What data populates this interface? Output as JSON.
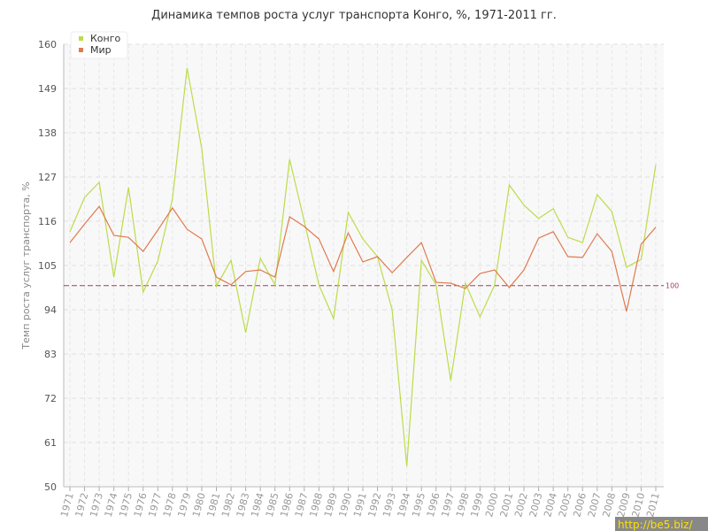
{
  "chart_data": {
    "type": "line",
    "title": "Динамика темпов роста услуг транспорта Конго, %, 1971-2011 гг.",
    "y_label": "Темп роста услуг транспорта, %",
    "categories": [
      "1971",
      "1972",
      "1973",
      "1974",
      "1975",
      "1976",
      "1977",
      "1978",
      "1979",
      "1980",
      "1981",
      "1982",
      "1983",
      "1984",
      "1985",
      "1986",
      "1987",
      "1988",
      "1989",
      "1990",
      "1991",
      "1992",
      "1993",
      "1994",
      "1995",
      "1996",
      "1997",
      "1998",
      "1999",
      "2000",
      "2001",
      "2002",
      "2003",
      "2004",
      "2005",
      "2006",
      "2007",
      "2008",
      "2009",
      "2010",
      "2011"
    ],
    "series": [
      {
        "name": "Конго",
        "color": "#bcdc4a",
        "values": [
          113.4,
          121.9,
          125.7,
          102.1,
          124.4,
          98.4,
          106.1,
          121.5,
          154.1,
          134.1,
          99.9,
          106.3,
          88.3,
          106.8,
          100.2,
          131.4,
          116.0,
          100.2,
          91.8,
          118.2,
          111.6,
          107.2,
          94.0,
          55.1,
          106.3,
          100.2,
          76.4,
          100.6,
          92.2,
          100.2,
          125.0,
          120.0,
          116.7,
          119.1,
          112.0,
          110.7,
          122.6,
          118.4,
          104.6,
          106.5,
          130.1
        ]
      },
      {
        "name": "Мир",
        "color": "#e07a4f",
        "values": [
          110.7,
          115.3,
          119.7,
          112.5,
          112.0,
          108.5,
          113.8,
          119.3,
          114.0,
          111.6,
          102.1,
          100.2,
          103.5,
          103.9,
          102.1,
          117.1,
          114.7,
          111.6,
          103.5,
          113.1,
          105.9,
          107.2,
          103.2,
          107.0,
          110.7,
          100.8,
          100.6,
          99.3,
          103.0,
          103.9,
          99.5,
          103.9,
          111.8,
          113.4,
          107.2,
          107.0,
          112.9,
          108.5,
          93.6,
          110.3,
          114.5
        ]
      }
    ],
    "reference_line": 100,
    "reference_color": "#a0405a",
    "ylim": [
      50,
      160
    ],
    "yticks": [
      50,
      61,
      72,
      83,
      94,
      105,
      116,
      127,
      138,
      149,
      160
    ],
    "grid": true,
    "legend": "top-left",
    "watermark": "http://be5.biz/"
  }
}
